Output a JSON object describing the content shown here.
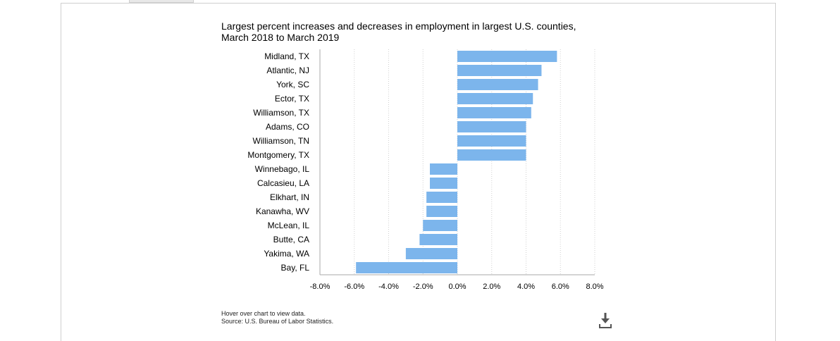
{
  "chart_data": {
    "type": "bar",
    "orientation": "horizontal",
    "title": "Largest percent increases and decreases in employment in largest U.S. counties, March 2018 to March 2019",
    "categories": [
      "Midland, TX",
      "Atlantic, NJ",
      "York, SC",
      "Ector, TX",
      "Williamson, TX",
      "Adams, CO",
      "Williamson, TN",
      "Montgomery, TX",
      "Winnebago, IL",
      "Calcasieu, LA",
      "Elkhart, IN",
      "Kanawha, WV",
      "McLean, IL",
      "Butte, CA",
      "Yakima, WA",
      "Bay, FL"
    ],
    "values": [
      5.8,
      4.9,
      4.7,
      4.4,
      4.3,
      4.0,
      4.0,
      4.0,
      -1.6,
      -1.6,
      -1.8,
      -1.8,
      -2.0,
      -2.2,
      -3.0,
      -5.9
    ],
    "xlim": [
      -8,
      8
    ],
    "xticks": [
      -8,
      -6,
      -4,
      -2,
      0,
      2,
      4,
      6,
      8
    ],
    "xtick_labels": [
      "-8.0%",
      "-6.0%",
      "-4.0%",
      "-2.0%",
      "0.0%",
      "2.0%",
      "4.0%",
      "6.0%",
      "8.0%"
    ],
    "xlabel": "",
    "ylabel": "",
    "grid": "vertical dotted",
    "bar_color": "#7cb5ec"
  },
  "footnote": {
    "line1": "Hover over chart to view data.",
    "line2": "Source: U.S. Bureau of Labor Statistics."
  },
  "icons": {
    "download": "download-icon"
  }
}
